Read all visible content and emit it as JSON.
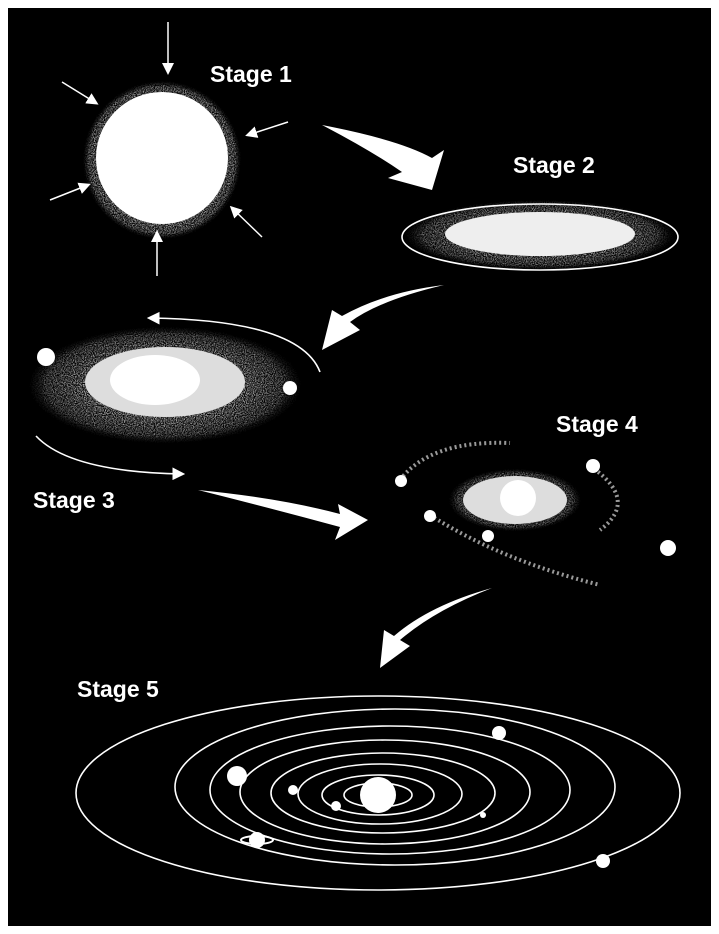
{
  "stages": [
    {
      "label": "Stage 1"
    },
    {
      "label": "Stage 2"
    },
    {
      "label": "Stage 3"
    },
    {
      "label": "Stage 4"
    },
    {
      "label": "Stage 5"
    }
  ]
}
